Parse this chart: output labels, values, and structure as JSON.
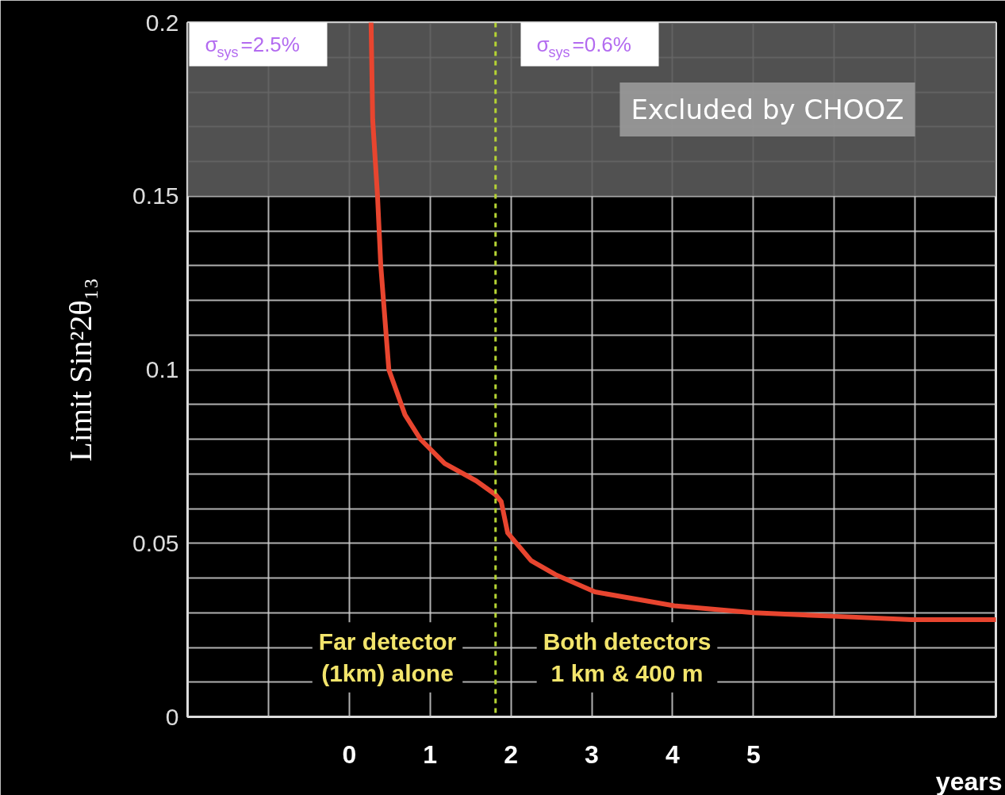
{
  "chart_data": {
    "type": "line",
    "ylabel": "Limit Sin²2θ₁₃",
    "xlabel": "years",
    "xlim": [
      -2,
      8
    ],
    "ylim": [
      0,
      0.2
    ],
    "xticks": [
      {
        "value": -2,
        "label": null
      },
      {
        "value": -1,
        "label": null
      },
      0,
      1,
      2,
      3,
      4,
      5,
      {
        "value": 6,
        "label": null
      },
      {
        "value": 7,
        "label": null
      },
      {
        "value": 8,
        "label": null
      }
    ],
    "yticks": [
      0,
      {
        "value": 0.01,
        "label": null
      },
      {
        "value": 0.02,
        "label": null
      },
      {
        "value": 0.03,
        "label": null
      },
      {
        "value": 0.04,
        "label": null
      },
      0.05,
      {
        "value": 0.06,
        "label": null
      },
      {
        "value": 0.07,
        "label": null
      },
      {
        "value": 0.08,
        "label": null
      },
      {
        "value": 0.09,
        "label": null
      },
      0.1,
      {
        "value": 0.11,
        "label": null
      },
      {
        "value": 0.12,
        "label": null
      },
      {
        "value": 0.13,
        "label": null
      },
      {
        "value": 0.14,
        "label": null
      },
      0.15,
      {
        "value": 0.16,
        "label": null
      },
      {
        "value": 0.17,
        "label": null
      },
      {
        "value": 0.18,
        "label": null
      },
      {
        "value": 0.19,
        "label": null
      },
      0.2
    ],
    "grid": true,
    "series": [
      {
        "color": "#e8452f",
        "x": [
          0.27,
          0.29,
          0.35,
          0.39,
          0.49,
          0.69,
          0.88,
          1.18,
          1.57,
          1.81,
          1.88,
          1.96,
          2.25,
          2.55,
          3.04,
          3.53,
          4.02,
          5.0,
          5.98,
          6.96,
          7.99
        ],
        "values": [
          0.2,
          0.172,
          0.15,
          0.13,
          0.1,
          0.087,
          0.08,
          0.073,
          0.068,
          0.064,
          0.062,
          0.053,
          0.045,
          0.041,
          0.036,
          0.034,
          0.032,
          0.03,
          0.029,
          0.028,
          0.028
        ]
      }
    ],
    "ref_lines": [
      {
        "axis": "x",
        "value": 1.81,
        "color": "#b5d334",
        "line_style": "dashed"
      }
    ],
    "bands": [
      {
        "axis": "y",
        "from": 0.15,
        "to": 0.2,
        "label": "Excluded by CHOOZ",
        "color": "#5a5a5a"
      }
    ],
    "annotations": [
      "σ$_{sys}$=2.5%",
      "σ$_{sys}$=0.6%",
      "Far detector\n(1km) alone",
      "Both detectors\n1 km & 400 m"
    ]
  }
}
